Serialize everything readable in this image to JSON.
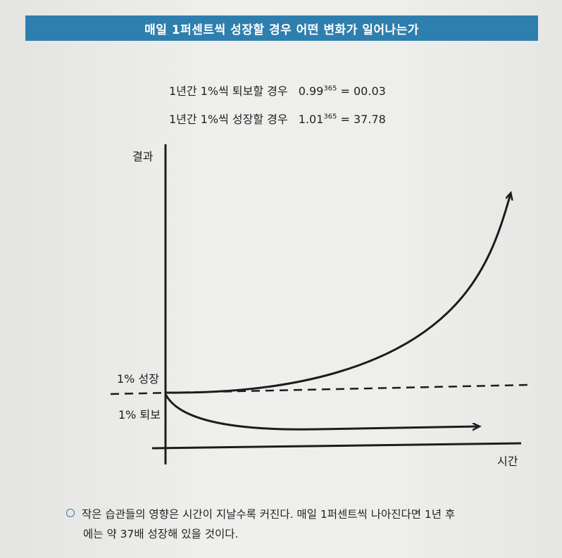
{
  "header": {
    "title": "매일 1퍼센트씩 성장할 경우 어떤 변화가 일어나는가"
  },
  "formulas": {
    "decline": {
      "text": "1년간 1%씩 퇴보할 경우",
      "base": "0.99",
      "exponent": "365",
      "result": "= 00.03"
    },
    "growth": {
      "text": "1년간 1%씩 성장할 경우",
      "base": "1.01",
      "exponent": "365",
      "result": "= 37.78"
    }
  },
  "chart": {
    "y_label": "결과",
    "x_label": "시간",
    "growth_label": "1% 성장",
    "decline_label": "1% 퇴보"
  },
  "chart_data": {
    "type": "line",
    "title": "",
    "xlabel": "시간",
    "ylabel": "결과",
    "series": [
      {
        "name": "1% 성장",
        "x": [
          0,
          0.25,
          0.5,
          0.75,
          1.0
        ],
        "y": [
          1.0,
          2.46,
          6.1,
          15.2,
          37.78
        ]
      },
      {
        "name": "1% 퇴보",
        "x": [
          0,
          0.25,
          0.5,
          0.75,
          1.0
        ],
        "y": [
          1.0,
          0.4,
          0.16,
          0.065,
          0.03
        ]
      }
    ],
    "baseline": 1.0,
    "grid": false,
    "legend": "none"
  },
  "caption": {
    "line1": "작은 습관들의 영향은 시간이 지날수록 커진다. 매일 1퍼센트씩 나아진다면 1년 후",
    "line2": "에는 약 37배 성장해 있을 것이다."
  },
  "colors": {
    "accent": "#2f7fae",
    "ink": "#1c1c1c"
  }
}
